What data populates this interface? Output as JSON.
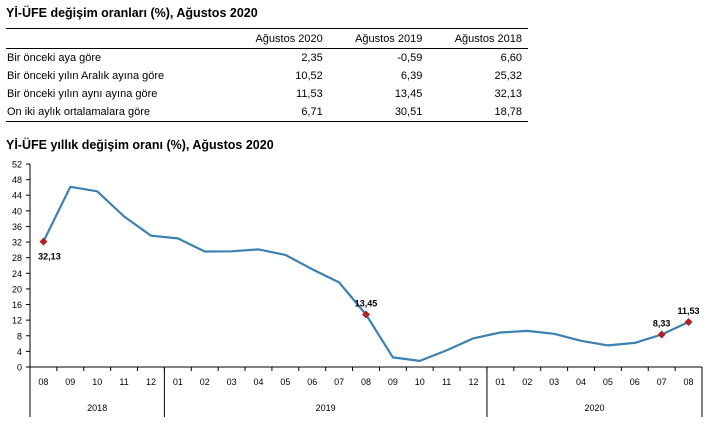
{
  "table": {
    "title": "Yİ-ÜFE değişim oranları (%), Ağustos 2020",
    "columns": [
      "Ağustos 2020",
      "Ağustos 2019",
      "Ağustos 2018"
    ],
    "rows": [
      {
        "label": "Bir önceki aya göre",
        "values": [
          "2,35",
          "-0,59",
          "6,60"
        ]
      },
      {
        "label": "Bir önceki yılın Aralık ayına göre",
        "values": [
          "10,52",
          "6,39",
          "25,32"
        ]
      },
      {
        "label": "Bir önceki yılın aynı ayına göre",
        "values": [
          "11,53",
          "13,45",
          "32,13"
        ]
      },
      {
        "label": "On iki aylık ortalamalara göre",
        "values": [
          "6,71",
          "30,51",
          "18,78"
        ]
      }
    ]
  },
  "chart_data": {
    "type": "line",
    "title": "Yİ-ÜFE yıllık değişim oranı (%), Ağustos 2020",
    "x": [
      "08",
      "09",
      "10",
      "11",
      "12",
      "01",
      "02",
      "03",
      "04",
      "05",
      "06",
      "07",
      "08",
      "09",
      "10",
      "11",
      "12",
      "01",
      "02",
      "03",
      "04",
      "05",
      "06",
      "07",
      "08"
    ],
    "year_groups": [
      {
        "label": "2018",
        "count": 5
      },
      {
        "label": "2019",
        "count": 12
      },
      {
        "label": "2020",
        "count": 8
      }
    ],
    "series": [
      {
        "values": [
          32.13,
          46.15,
          45.01,
          38.54,
          33.64,
          32.93,
          29.58,
          29.64,
          30.12,
          28.71,
          25.04,
          21.66,
          13.45,
          2.45,
          1.55,
          4.26,
          7.36,
          8.84,
          9.26,
          8.5,
          6.71,
          5.53,
          6.17,
          8.33,
          11.53
        ]
      }
    ],
    "ylim": [
      0,
      52
    ],
    "yticks": [
      0,
      4,
      8,
      12,
      16,
      20,
      24,
      28,
      32,
      36,
      40,
      44,
      48,
      52
    ],
    "grid": false,
    "line_color": "#3b82b0",
    "highlight_color": "#b22222",
    "highlights": [
      {
        "index": 0,
        "label": "32,13"
      },
      {
        "index": 12,
        "label": "13,45"
      },
      {
        "index": 23,
        "label": "8,33"
      },
      {
        "index": 24,
        "label": "11,53"
      }
    ]
  }
}
